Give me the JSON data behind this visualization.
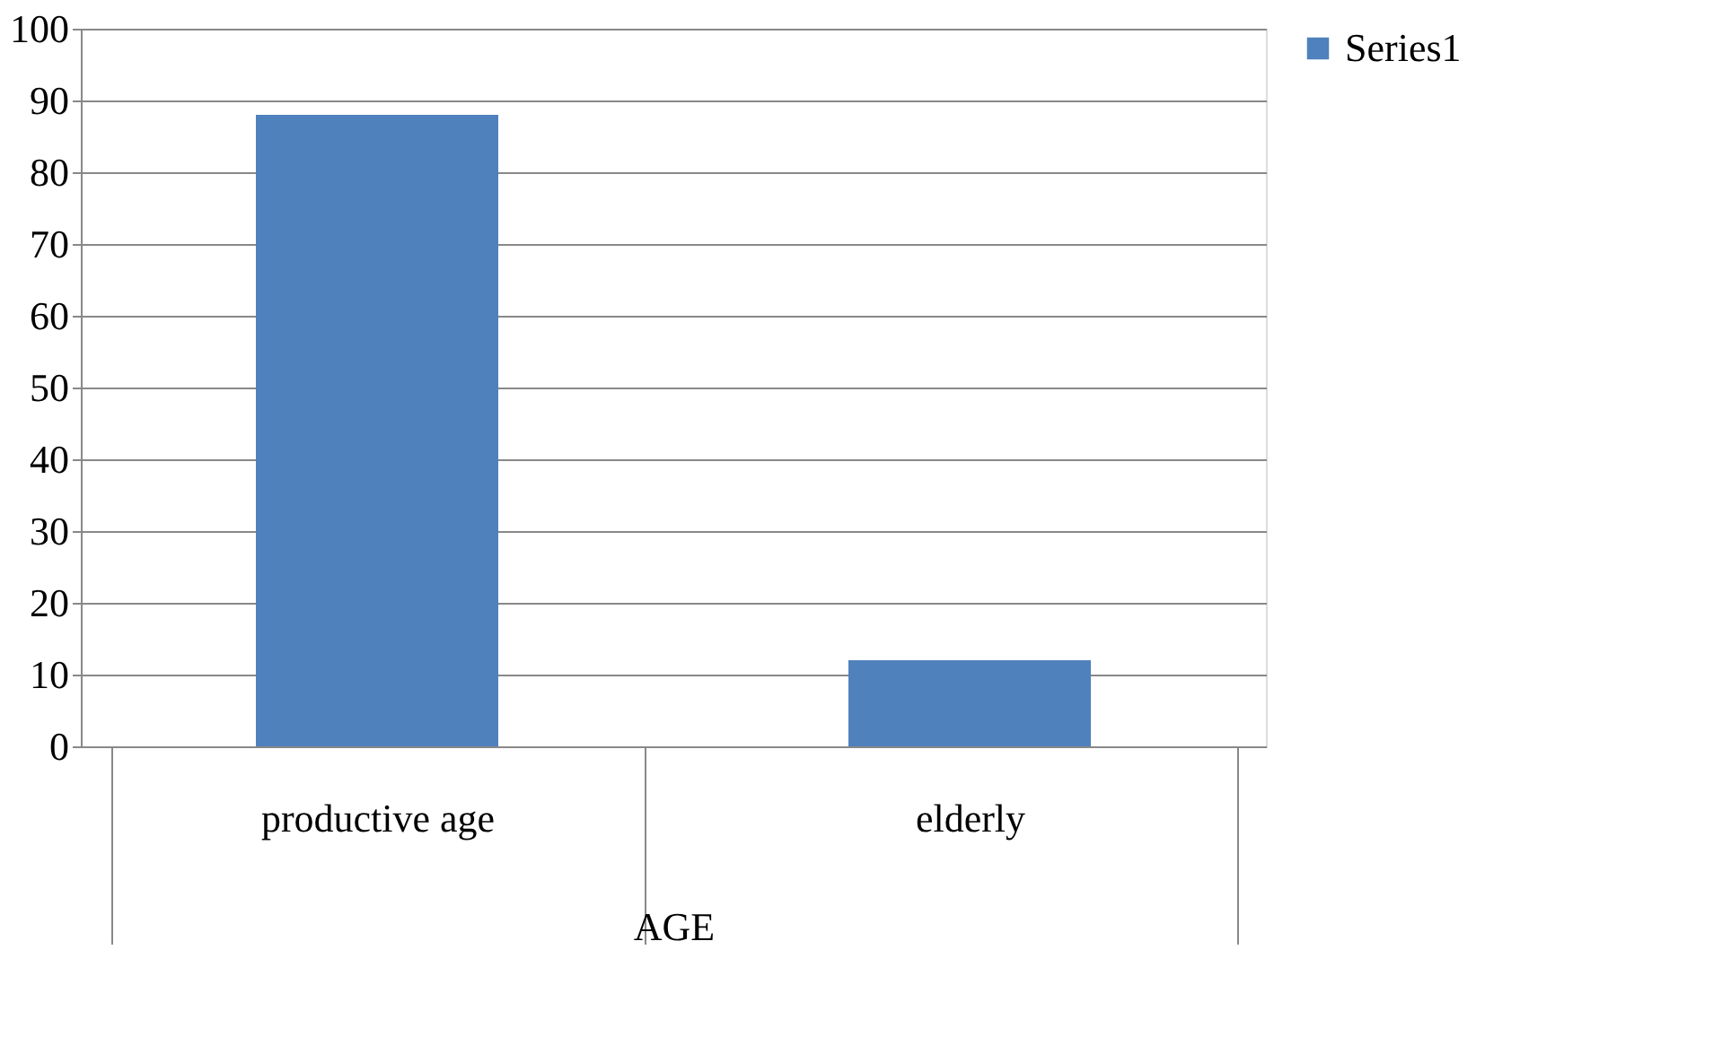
{
  "chart_data": {
    "type": "bar",
    "xlabel": "AGE",
    "categories": [
      "productive age",
      "elderly"
    ],
    "series": [
      {
        "name": "Series1",
        "color": "#4f81bd",
        "values": [
          88,
          12
        ]
      }
    ],
    "ylim": [
      0,
      100
    ],
    "yticks": [
      0,
      10,
      20,
      30,
      40,
      50,
      60,
      70,
      80,
      90,
      100
    ],
    "grid": "y",
    "legend": "right"
  }
}
